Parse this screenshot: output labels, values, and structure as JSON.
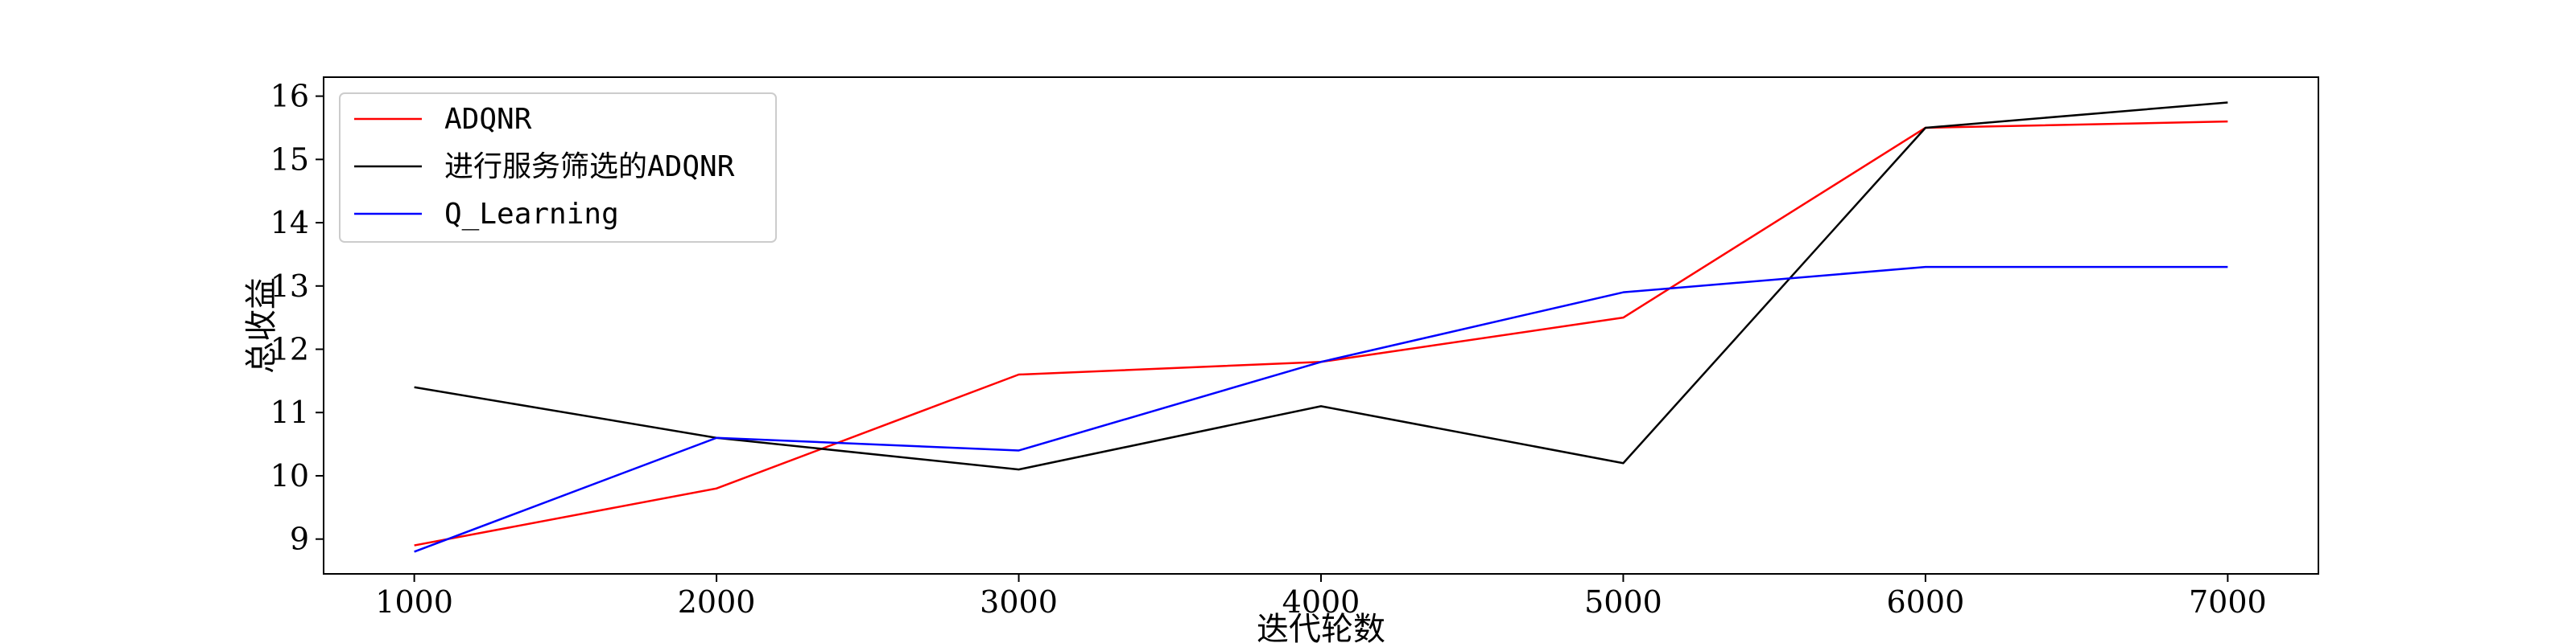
{
  "chart_data": {
    "type": "line",
    "title": "",
    "xlabel": "迭代轮数",
    "ylabel": "总收益",
    "x": [
      1000,
      2000,
      3000,
      4000,
      5000,
      6000,
      7000
    ],
    "xlim": [
      700,
      7300
    ],
    "ylim": [
      8.45,
      16.3
    ],
    "xticks": [
      "1000",
      "2000",
      "3000",
      "4000",
      "5000",
      "6000",
      "7000"
    ],
    "yticks": [
      "9",
      "10",
      "11",
      "12",
      "13",
      "14",
      "15",
      "16"
    ],
    "grid": false,
    "legend_position": "upper-left",
    "series": [
      {
        "name": "ADQNR",
        "color": "#ff0000",
        "values": [
          8.9,
          9.8,
          11.6,
          11.8,
          12.5,
          15.5,
          15.6
        ]
      },
      {
        "name": "进行服务筛选的ADQNR",
        "color": "#000000",
        "values": [
          11.4,
          10.6,
          10.1,
          11.1,
          10.2,
          15.5,
          15.9
        ]
      },
      {
        "name": "Q_Learning",
        "color": "#0000ff",
        "values": [
          8.8,
          10.6,
          10.4,
          11.8,
          12.9,
          13.3,
          13.3
        ]
      }
    ]
  }
}
